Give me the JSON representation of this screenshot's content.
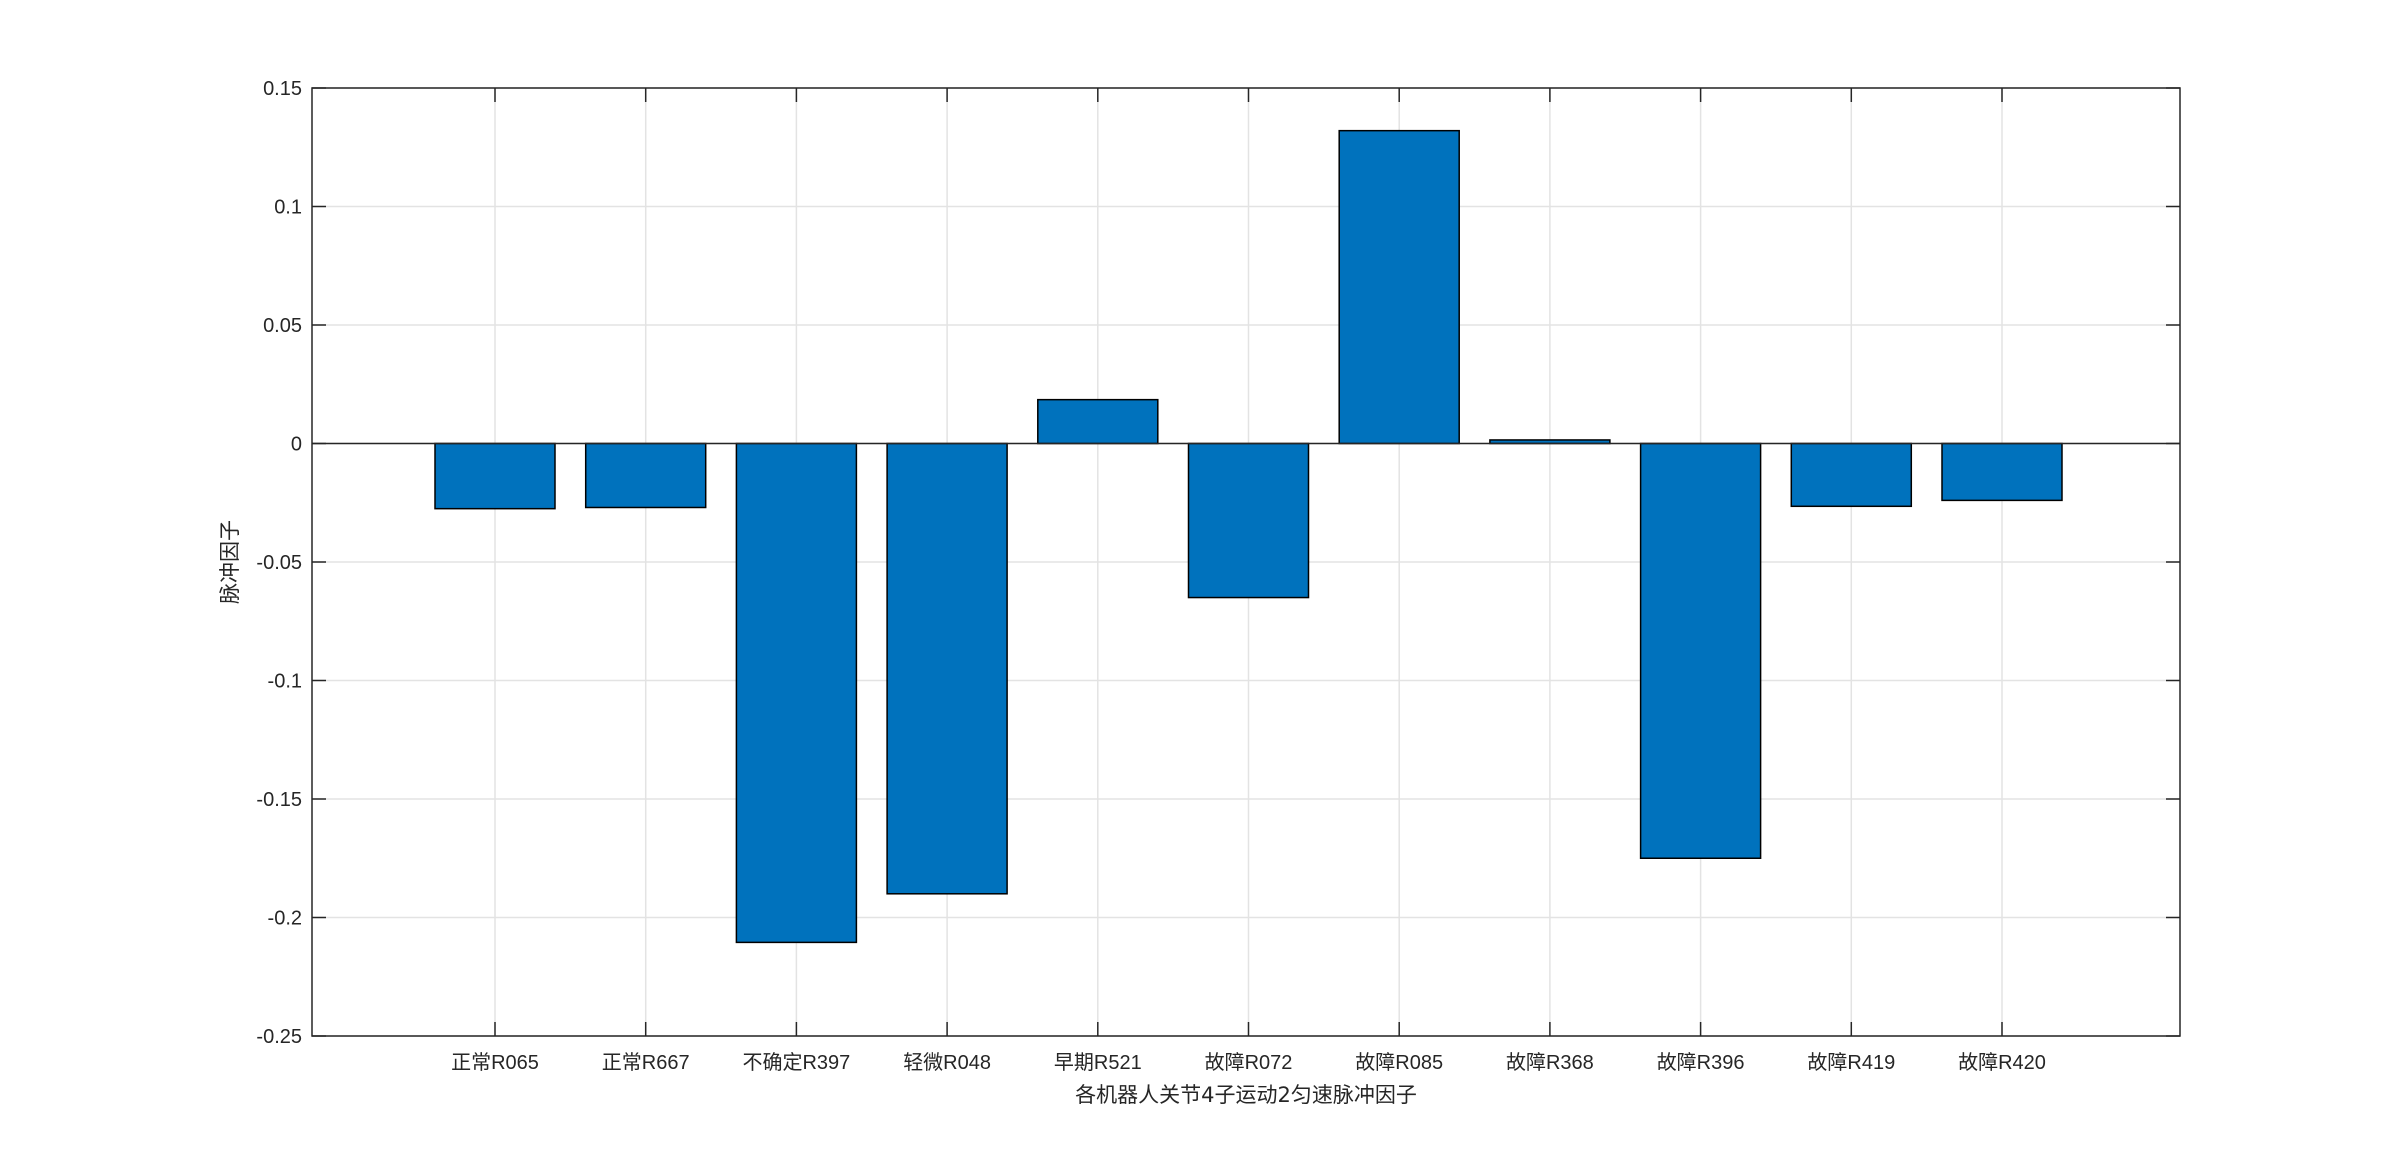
{
  "chart_data": {
    "type": "bar",
    "title": "",
    "xlabel": "各机器人关节4子运动2匀速脉冲因子",
    "ylabel": "脉冲因子",
    "categories": [
      "正常R065",
      "正常R667",
      "不确定R397",
      "轻微R048",
      "早期R521",
      "故障R072",
      "故障R085",
      "故障R368",
      "故障R396",
      "故障R419",
      "故障R420"
    ],
    "values": [
      -0.0275,
      -0.027,
      -0.2105,
      -0.19,
      0.0185,
      -0.065,
      0.132,
      0.0015,
      -0.175,
      -0.0265,
      -0.024
    ],
    "ylim": [
      -0.25,
      0.15
    ],
    "yticks": [
      0.15,
      0.1,
      0.05,
      0,
      -0.05,
      -0.1,
      -0.15,
      -0.2,
      -0.25
    ],
    "ytick_labels": [
      "0.15",
      "0.1",
      "0.05",
      "0",
      "-0.05",
      "-0.1",
      "-0.15",
      "-0.2",
      "-0.25"
    ],
    "grid": true,
    "bar_color": "#0072BD"
  }
}
